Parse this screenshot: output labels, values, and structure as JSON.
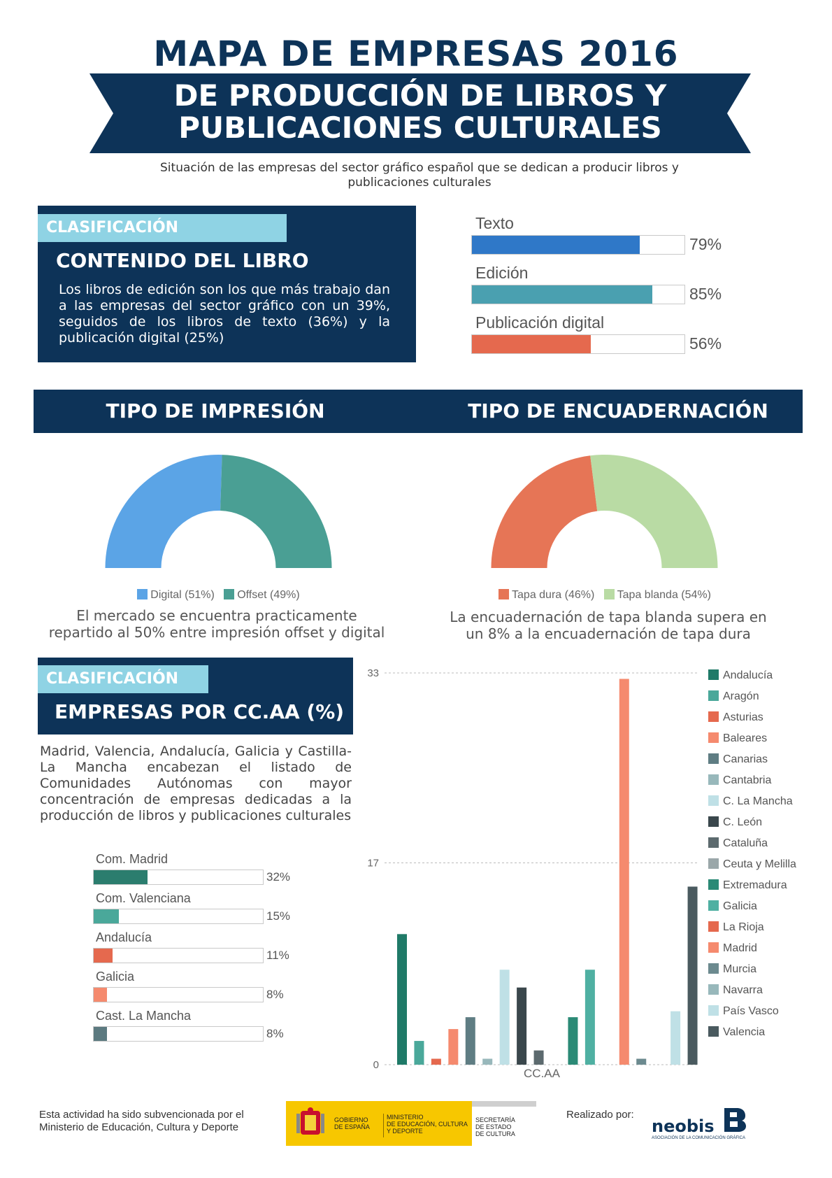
{
  "header": {
    "title": "MAPA DE EMPRESAS 2016",
    "ribbon_line1": "DE PRODUCCIÓN DE LIBROS Y",
    "ribbon_line2": "PUBLICACIONES CULTURALES",
    "subtitle_line1": "Situación de las empresas del sector gráfico español que se dedican a producir libros y",
    "subtitle_line2": "publicaciones culturales"
  },
  "contenido": {
    "tag": "CLASIFICACIÓN",
    "heading": "CONTENIDO DEL LIBRO",
    "text": "Los libros de edición son los que más trabajo dan a las empresas del sector gráfico con un 39%, seguidos de los libros de texto (36%) y la publicación digital (25%)"
  },
  "colors": {
    "navy": "#0d3358",
    "tag_blue": "#8fd3e4",
    "texto": "#2f78c8",
    "edicion": "#4aa0b0",
    "digital_pub": "#e5694e",
    "digital": "#5ba4e6",
    "offset": "#4a9f94",
    "tapa_dura": "#e67556",
    "tapa_blanda": "#b9dba4"
  },
  "sections": {
    "impresion": "TIPO DE IMPRESIÓN",
    "encuadernacion": "TIPO DE ENCUADERNACIÓN",
    "impresion_caption_1": "El mercado se encuentra practicamente",
    "impresion_caption_2": "repartido al 50% entre impresión offset y digital",
    "encuadernacion_caption_1": "La encuadernación de tapa blanda supera en",
    "encuadernacion_caption_2": "un 8% a la encuadernación de tapa dura"
  },
  "ccaa": {
    "tag": "CLASIFICACIÓN",
    "heading": "EMPRESAS POR CC.AA (%)",
    "text": "Madrid, Valencia, Andalucía, Galicia y Castilla- La Mancha encabezan el listado de Comunidades Autónomas con mayor concentración de empresas dedicadas a la producción de libros y publicaciones culturales"
  },
  "footer": {
    "line1": "Esta actividad ha sido subvencionada por el",
    "line2": "Ministerio de Educación, Cultura y Deporte",
    "gob_1": "GOBIERNO",
    "gob_2": "DE ESPAÑA",
    "min_1": "MINISTERIO",
    "min_2": "DE EDUCACIÓN, CULTURA",
    "min_3": "Y DEPORTE",
    "sec_1": "SECRETARÍA",
    "sec_2": "DE ESTADO",
    "sec_3": "DE CULTURA",
    "realizado": "Realizado por:",
    "logo_text": "neobis",
    "logo_sub": "ASOCIACIÓN DE LA COMUNICACIÓN GRÁFICA"
  },
  "chart_data": [
    {
      "type": "bar",
      "orientation": "horizontal",
      "categories": [
        "Texto",
        "Edición",
        "Publicación digital"
      ],
      "values": [
        79,
        85,
        56
      ],
      "value_labels": [
        "79%",
        "85%",
        "56%"
      ],
      "colors": [
        "#2f78c8",
        "#4aa0b0",
        "#e5694e"
      ],
      "xlim": [
        0,
        100
      ]
    },
    {
      "type": "pie",
      "style": "half-donut",
      "labels": [
        "Digital (51%)",
        "Offset (49%)"
      ],
      "values": [
        51,
        49
      ],
      "colors": [
        "#5ba4e6",
        "#4a9f94"
      ]
    },
    {
      "type": "pie",
      "style": "half-donut",
      "labels": [
        "Tapa dura (46%)",
        "Tapa blanda (54%)"
      ],
      "values": [
        46,
        54
      ],
      "colors": [
        "#e67556",
        "#b9dba4"
      ]
    },
    {
      "type": "bar",
      "orientation": "horizontal",
      "categories": [
        "Com. Madrid",
        "Com. Valenciana",
        "Andalucía",
        "Galicia",
        "Cast. La Mancha"
      ],
      "values": [
        32,
        15,
        11,
        8,
        8
      ],
      "value_labels": [
        "32%",
        "15%",
        "11%",
        "8%",
        "8%"
      ],
      "colors": [
        "#2b7d6e",
        "#4aa89a",
        "#e5694e",
        "#f58a6e",
        "#5c7a80"
      ],
      "xlim": [
        0,
        100
      ]
    },
    {
      "type": "bar",
      "xlabel": "CC.AA",
      "ylim": [
        0,
        33
      ],
      "yticks": [
        0,
        17,
        33
      ],
      "grid": true,
      "legend_position": "right",
      "series": [
        {
          "name": "Andalucía",
          "value": 11,
          "color": "#1f7a68"
        },
        {
          "name": "Aragón",
          "value": 2,
          "color": "#4aa89a"
        },
        {
          "name": "Asturias",
          "value": 0.5,
          "color": "#e5694e"
        },
        {
          "name": "Baleares",
          "value": 3,
          "color": "#f58a6e"
        },
        {
          "name": "Canarias",
          "value": 4,
          "color": "#5f7d83"
        },
        {
          "name": "Cantabria",
          "value": 0.5,
          "color": "#98b8bb"
        },
        {
          "name": "C. La Mancha",
          "value": 8,
          "color": "#bfe0e6"
        },
        {
          "name": "C. León",
          "value": 6.5,
          "color": "#3a474c"
        },
        {
          "name": "Cataluña",
          "value": 1.2,
          "color": "#5c6a6e"
        },
        {
          "name": "Ceuta y Melilla",
          "value": 0,
          "color": "#9aa7a9"
        },
        {
          "name": "Extremadura",
          "value": 4,
          "color": "#2b8a76"
        },
        {
          "name": "Galicia",
          "value": 8,
          "color": "#4fb0a2"
        },
        {
          "name": "La Rioja",
          "value": 0,
          "color": "#e5694e"
        },
        {
          "name": "Madrid",
          "value": 32.5,
          "color": "#f58a6e"
        },
        {
          "name": "Murcia",
          "value": 0.5,
          "color": "#6c8a8f"
        },
        {
          "name": "Navarra",
          "value": 0,
          "color": "#98b8bb"
        },
        {
          "name": "País Vasco",
          "value": 4.5,
          "color": "#bfe0e6"
        },
        {
          "name": "Valencia",
          "value": 15,
          "color": "#4a5a5f"
        }
      ]
    }
  ]
}
